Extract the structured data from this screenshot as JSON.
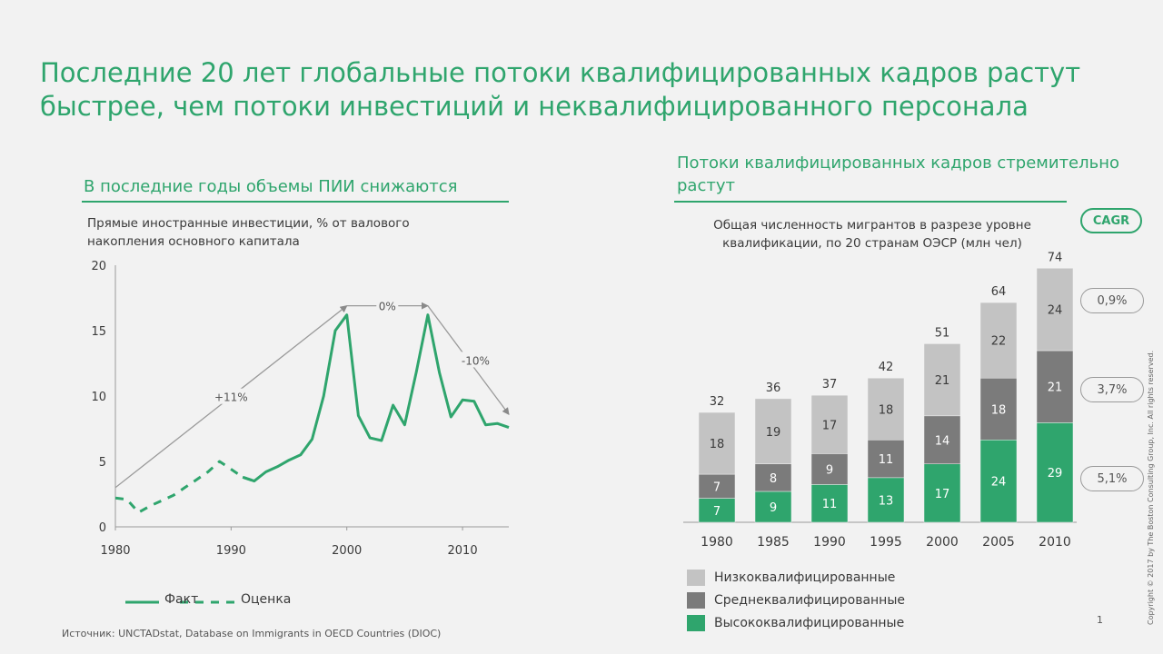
{
  "title": "Последние 20 лет глобальные потоки квалифицированных кадров растут быстрее, чем потоки инвестиций и неквалифицированного персонала",
  "left_section": {
    "heading": "В последние годы объемы ПИИ снижаются",
    "subtitle": "Прямые иностранные инвестиции, % от валового накопления основного капитала",
    "legend_fact": "Факт",
    "legend_estimate": "Оценка"
  },
  "right_section": {
    "heading": "Потоки квалифицированных кадров стремительно растут",
    "subtitle": "Общая численность мигрантов в разрезе уровне квалификации, по 20 странам ОЭСР (млн чел)",
    "cagr_label": "CAGR",
    "cagr_values": [
      "0,9%",
      "3,7%",
      "5,1%"
    ],
    "legend": [
      {
        "label": "Низкоквалифицированные",
        "color": "#c3c3c3"
      },
      {
        "label": "Среднеквалифицированные",
        "color": "#7b7b7b"
      },
      {
        "label": "Высококвалифицированные",
        "color": "#2fa56d"
      }
    ]
  },
  "colors": {
    "green": "#2fa56d",
    "grey_light": "#c3c3c3",
    "grey_dark": "#7b7b7b"
  },
  "source": "Источник: UNCTADstat, Database on Immigrants in OECD Countries (DIOC)",
  "page_number": "1",
  "copyright": "Copyright © 2017 by The Boston Consulting Group, Inc. All rights reserved.",
  "chart_data": [
    {
      "type": "line",
      "title": "Прямые иностранные инвестиции, % от валового накопления основного капитала",
      "xlim": [
        1980,
        2014
      ],
      "ylim": [
        0,
        20
      ],
      "x_ticks": [
        1980,
        1990,
        2000,
        2010
      ],
      "y_ticks": [
        0,
        5,
        10,
        15,
        20
      ],
      "grid": false,
      "legend_position": "bottom",
      "series": [
        {
          "name": "Оценка",
          "style": "dashed",
          "x": [
            1980,
            1981,
            1982,
            1983,
            1984,
            1985,
            1986,
            1987,
            1988,
            1989,
            1990,
            1991,
            1992
          ],
          "y": [
            2.2,
            2.1,
            1.1,
            1.6,
            2.0,
            2.4,
            3.0,
            3.6,
            4.2,
            5.0,
            4.4,
            3.8,
            3.5
          ]
        },
        {
          "name": "Факт",
          "style": "solid",
          "x": [
            1991,
            1992,
            1993,
            1994,
            1995,
            1996,
            1997,
            1998,
            1999,
            2000,
            2001,
            2002,
            2003,
            2004,
            2005,
            2006,
            2007,
            2008,
            2009,
            2010,
            2011,
            2012,
            2013,
            2014
          ],
          "y": [
            3.8,
            3.5,
            4.2,
            4.6,
            5.1,
            5.5,
            6.7,
            10.0,
            15.0,
            16.2,
            8.5,
            6.8,
            6.6,
            9.3,
            7.8,
            11.8,
            16.2,
            11.8,
            8.4,
            9.7,
            9.6,
            7.8,
            7.9,
            7.6
          ]
        }
      ],
      "annotations": [
        {
          "text": "+11%",
          "from": [
            1980,
            3.0
          ],
          "to": [
            2000,
            16.9
          ]
        },
        {
          "text": "0%",
          "from": [
            2000,
            16.9
          ],
          "to": [
            2007,
            16.9
          ]
        },
        {
          "text": "-10%",
          "from": [
            2007,
            16.9
          ],
          "to": [
            2014,
            8.6
          ]
        }
      ]
    },
    {
      "type": "bar",
      "stacked": true,
      "title": "Общая численность мигрантов в разрезе уровне квалификации, по 20 странам ОЭСР (млн чел)",
      "categories": [
        "1980",
        "1985",
        "1990",
        "1995",
        "2000",
        "2005",
        "2010"
      ],
      "series": [
        {
          "name": "Высококвалифицированные",
          "values": [
            7,
            9,
            11,
            13,
            17,
            24,
            29
          ]
        },
        {
          "name": "Среднеквалифицированные",
          "values": [
            7,
            8,
            9,
            11,
            14,
            18,
            21
          ]
        },
        {
          "name": "Низкоквалифицированные",
          "values": [
            18,
            19,
            17,
            18,
            21,
            22,
            24
          ]
        }
      ],
      "totals": [
        32,
        36,
        37,
        42,
        51,
        64,
        74
      ],
      "legend_position": "bottom-left"
    }
  ]
}
